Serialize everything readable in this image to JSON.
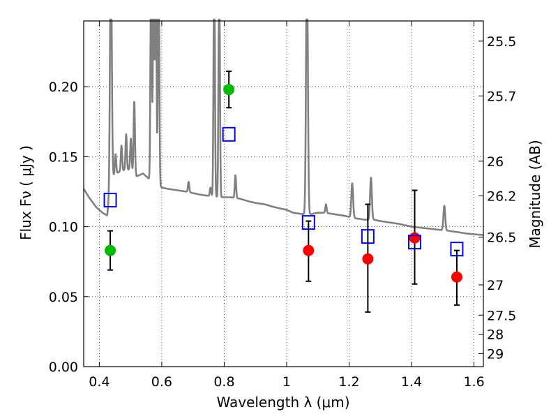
{
  "chart_data": {
    "type": "scatter",
    "xlabel": "Wavelength  λ (μm)",
    "ylabel": "Flux  Fν  ( μJy )",
    "y2label": "Magnitude (AB)",
    "xlim": [
      0.35,
      1.63
    ],
    "ylim": [
      0.0,
      0.247
    ],
    "grid": true,
    "x_ticks": [
      0.4,
      0.6,
      0.8,
      1.0,
      1.2,
      1.4,
      1.6
    ],
    "x_tick_labels": [
      "0.4",
      "0.6",
      "0.8",
      "1",
      "1.2",
      "1.4",
      "1.6"
    ],
    "y_ticks": [
      0.0,
      0.05,
      0.1,
      0.15,
      0.2
    ],
    "y_tick_labels": [
      "0.00",
      "0.05",
      "0.10",
      "0.15",
      "0.20"
    ],
    "mag_ticks": [
      {
        "label": "25.5",
        "flux": 0.2326
      },
      {
        "label": "25.7",
        "flux": 0.1934
      },
      {
        "label": "26",
        "flux": 0.1468
      },
      {
        "label": "26.2",
        "flux": 0.122
      },
      {
        "label": "26.5",
        "flux": 0.0925
      },
      {
        "label": "27",
        "flux": 0.0584
      },
      {
        "label": "27.5",
        "flux": 0.0368
      },
      {
        "label": "28",
        "flux": 0.0232
      },
      {
        "label": "29",
        "flux": 0.0093
      }
    ],
    "series": [
      {
        "color": "#00bb00",
        "points": [
          {
            "x": 0.435,
            "y": 0.083,
            "yerr_low": 0.069,
            "yerr_high": 0.097
          },
          {
            "x": 0.815,
            "y": 0.198,
            "yerr_low": 0.185,
            "yerr_high": 0.211
          }
        ]
      },
      {
        "color": "#ff0000",
        "points": [
          {
            "x": 1.07,
            "y": 0.083,
            "yerr_low": 0.061,
            "yerr_high": 0.104
          },
          {
            "x": 1.26,
            "y": 0.077,
            "yerr_low": 0.039,
            "yerr_high": 0.116
          },
          {
            "x": 1.41,
            "y": 0.092,
            "yerr_low": 0.059,
            "yerr_high": 0.126
          },
          {
            "x": 1.545,
            "y": 0.064,
            "yerr_low": 0.044,
            "yerr_high": 0.083
          }
        ]
      },
      {
        "color": "#0000ff",
        "marker": "open-square",
        "points": [
          {
            "x": 0.435,
            "y": 0.119
          },
          {
            "x": 0.815,
            "y": 0.166
          },
          {
            "x": 1.07,
            "y": 0.103
          },
          {
            "x": 1.26,
            "y": 0.093
          },
          {
            "x": 1.41,
            "y": 0.089
          },
          {
            "x": 1.545,
            "y": 0.084
          }
        ]
      }
    ],
    "model_spectrum": {
      "color": "#808080",
      "continuum": [
        [
          0.35,
          0.127
        ],
        [
          0.37,
          0.12
        ],
        [
          0.39,
          0.114
        ],
        [
          0.41,
          0.11
        ],
        [
          0.425,
          0.108
        ],
        [
          0.44,
          0.135
        ],
        [
          0.455,
          0.138
        ],
        [
          0.47,
          0.14
        ],
        [
          0.5,
          0.141
        ],
        [
          0.52,
          0.136
        ],
        [
          0.54,
          0.138
        ],
        [
          0.56,
          0.134
        ],
        [
          0.58,
          0.131
        ],
        [
          0.6,
          0.128
        ],
        [
          0.62,
          0.127
        ],
        [
          0.65,
          0.126
        ],
        [
          0.68,
          0.125
        ],
        [
          0.7,
          0.124
        ],
        [
          0.72,
          0.123
        ],
        [
          0.75,
          0.122
        ],
        [
          0.78,
          0.121
        ],
        [
          0.82,
          0.121
        ],
        [
          0.85,
          0.12
        ],
        [
          0.88,
          0.118
        ],
        [
          0.9,
          0.117
        ],
        [
          0.93,
          0.116
        ],
        [
          0.96,
          0.114
        ],
        [
          0.98,
          0.113
        ],
        [
          1.0,
          0.112
        ],
        [
          1.02,
          0.11
        ],
        [
          1.05,
          0.109
        ],
        [
          1.08,
          0.109
        ],
        [
          1.1,
          0.11
        ],
        [
          1.12,
          0.11
        ],
        [
          1.15,
          0.109
        ],
        [
          1.18,
          0.108
        ],
        [
          1.2,
          0.107
        ],
        [
          1.22,
          0.106
        ],
        [
          1.25,
          0.105
        ],
        [
          1.28,
          0.105
        ],
        [
          1.3,
          0.104
        ],
        [
          1.33,
          0.103
        ],
        [
          1.36,
          0.102
        ],
        [
          1.4,
          0.1
        ],
        [
          1.44,
          0.099
        ],
        [
          1.48,
          0.098
        ],
        [
          1.52,
          0.097
        ],
        [
          1.55,
          0.096
        ],
        [
          1.58,
          0.095
        ],
        [
          1.63,
          0.094
        ]
      ],
      "lines": [
        {
          "x": 0.437,
          "peak": 0.3,
          "w": 0.004
        },
        {
          "x": 0.452,
          "peak": 0.152,
          "w": 0.003
        },
        {
          "x": 0.471,
          "peak": 0.158,
          "w": 0.003
        },
        {
          "x": 0.486,
          "peak": 0.166,
          "w": 0.003
        },
        {
          "x": 0.501,
          "peak": 0.163,
          "w": 0.003
        },
        {
          "x": 0.512,
          "peak": 0.19,
          "w": 0.003
        },
        {
          "x": 0.566,
          "peak": 0.3,
          "w": 0.003
        },
        {
          "x": 0.574,
          "peak": 0.3,
          "w": 0.003
        },
        {
          "x": 0.581,
          "peak": 0.3,
          "w": 0.003
        },
        {
          "x": 0.59,
          "peak": 0.3,
          "w": 0.003
        },
        {
          "x": 0.686,
          "peak": 0.132,
          "w": 0.003
        },
        {
          "x": 0.756,
          "peak": 0.128,
          "w": 0.003
        },
        {
          "x": 0.768,
          "peak": 0.3,
          "w": 0.003
        },
        {
          "x": 0.784,
          "peak": 0.3,
          "w": 0.003
        },
        {
          "x": 0.836,
          "peak": 0.137,
          "w": 0.003
        },
        {
          "x": 1.065,
          "peak": 0.3,
          "w": 0.004
        },
        {
          "x": 1.126,
          "peak": 0.116,
          "w": 0.003
        },
        {
          "x": 1.21,
          "peak": 0.131,
          "w": 0.004
        },
        {
          "x": 1.27,
          "peak": 0.135,
          "w": 0.004
        },
        {
          "x": 1.505,
          "peak": 0.115,
          "w": 0.004
        }
      ]
    }
  }
}
